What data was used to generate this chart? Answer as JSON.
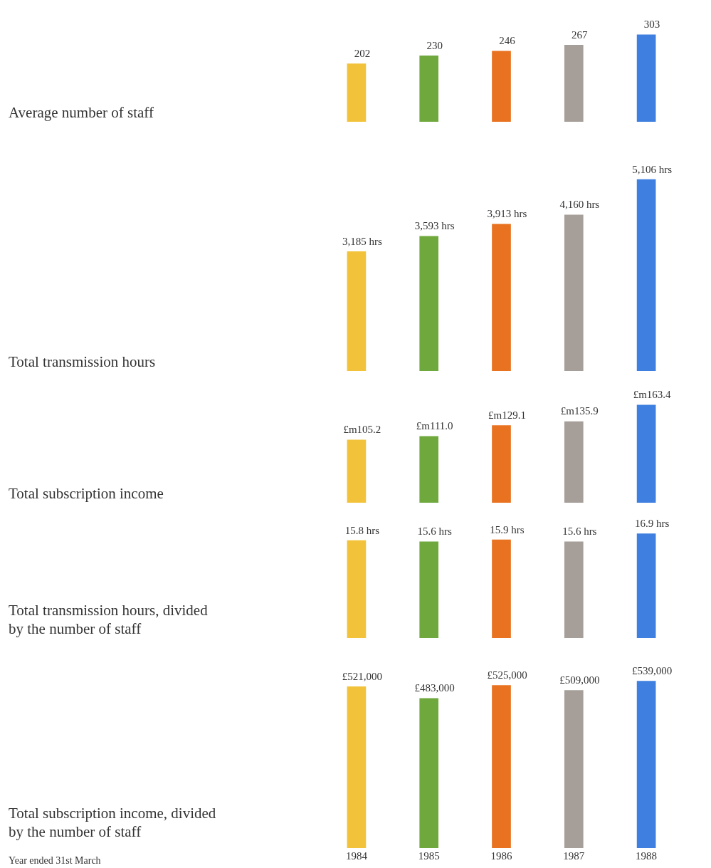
{
  "chart_data": [
    {
      "type": "bar",
      "ylabel": "Average number of staff",
      "categories": [
        "1984",
        "1985",
        "1986",
        "1987",
        "1988"
      ],
      "values": [
        202,
        230,
        246,
        267,
        303
      ],
      "colors": [
        "#f2c33a",
        "#6fa83c",
        "#e8721f",
        "#a69e98",
        "#3f7fe0"
      ],
      "data_labels": true,
      "tick_labels": false,
      "legend": false,
      "grid": false
    },
    {
      "type": "bar",
      "ylabel": "Total transmission hours",
      "categories": [
        "1984",
        "1985",
        "1986",
        "1987",
        "1988"
      ],
      "values": [
        3185,
        3593,
        3913,
        4160,
        5106
      ],
      "value_labels": [
        "3,185 hrs",
        "3,593 hrs",
        "3,913 hrs",
        "4,160 hrs",
        "5,106 hrs"
      ],
      "colors": [
        "#f2c33a",
        "#6fa83c",
        "#e8721f",
        "#a69e98",
        "#3f7fe0"
      ],
      "tick_labels": false,
      "legend": false,
      "grid": false
    },
    {
      "type": "bar",
      "ylabel": "Total subscription income",
      "categories": [
        "1984",
        "1985",
        "1986",
        "1987",
        "1988"
      ],
      "values": [
        105.2,
        111.0,
        129.1,
        135.9,
        163.4
      ],
      "value_labels": [
        "£m105.2",
        "£m111.0",
        "£m129.1",
        "£m135.9",
        "£m163.4"
      ],
      "colors": [
        "#f2c33a",
        "#6fa83c",
        "#e8721f",
        "#a69e98",
        "#3f7fe0"
      ],
      "tick_labels": false,
      "legend": false,
      "grid": false
    },
    {
      "type": "bar",
      "ylabel": "Total transmission hours, divided by the number of staff",
      "categories": [
        "1984",
        "1985",
        "1986",
        "1987",
        "1988"
      ],
      "values": [
        15.8,
        15.6,
        15.9,
        15.6,
        16.9
      ],
      "value_labels": [
        "15.8 hrs",
        "15.6 hrs",
        "15.9 hrs",
        "15.6 hrs",
        "16.9 hrs"
      ],
      "colors": [
        "#f2c33a",
        "#6fa83c",
        "#e8721f",
        "#a69e98",
        "#3f7fe0"
      ],
      "tick_labels": false,
      "legend": false,
      "grid": false
    },
    {
      "type": "bar",
      "ylabel": "Total subscription income, divided by the number of staff",
      "categories": [
        "1984",
        "1985",
        "1986",
        "1987",
        "1988"
      ],
      "values": [
        521000,
        483000,
        525000,
        509000,
        539000
      ],
      "value_labels": [
        "£521,000",
        "£483,000",
        "£525,000",
        "£509,000",
        "£539,000"
      ],
      "colors": [
        "#f2c33a",
        "#6fa83c",
        "#e8721f",
        "#a69e98",
        "#3f7fe0"
      ],
      "tick_labels": "x",
      "legend": false,
      "grid": false,
      "annotations": [
        "Year ended 31st March"
      ]
    }
  ]
}
